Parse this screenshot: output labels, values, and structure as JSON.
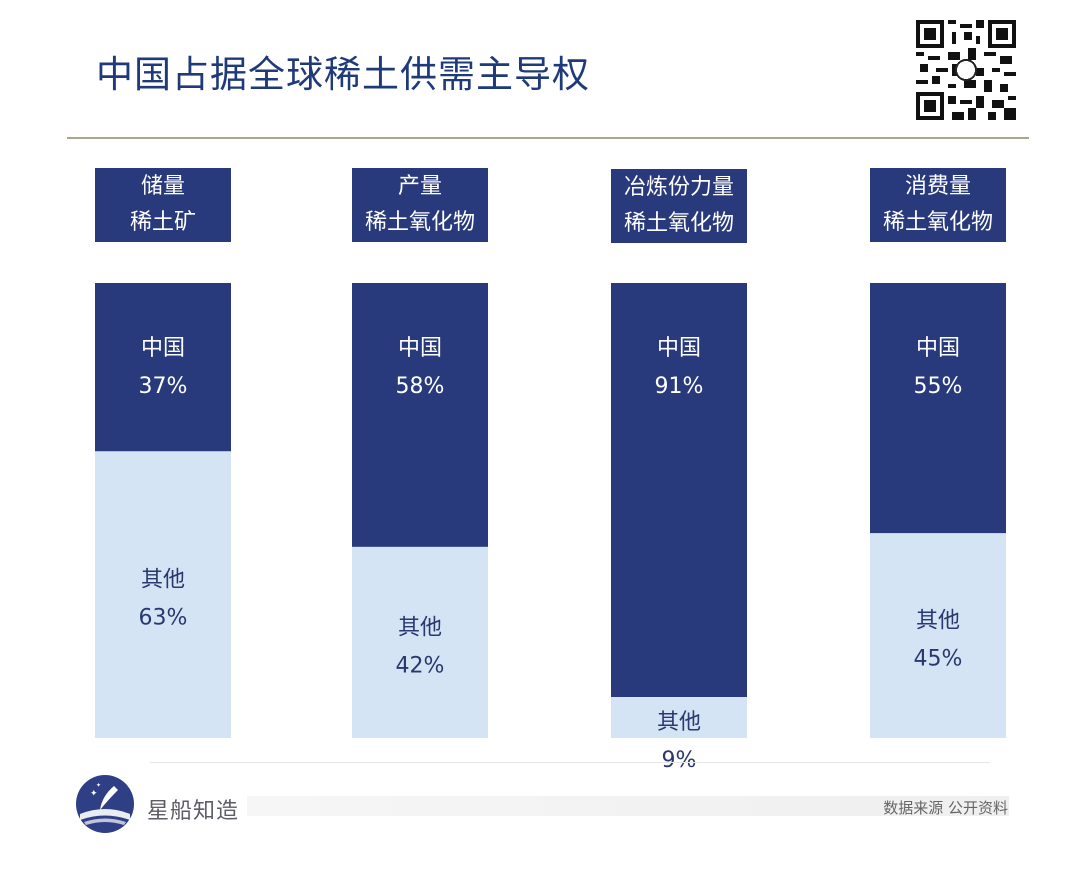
{
  "header": {
    "title": "中国占据全球稀土供需主导权"
  },
  "chart_data": {
    "type": "bar",
    "stacked": true,
    "orientation": "vertical-100-percent",
    "categories": [
      {
        "line1": "储量",
        "line2": "稀土矿"
      },
      {
        "line1": "产量",
        "line2": "稀土氧化物"
      },
      {
        "line1": "冶炼份力量",
        "line2": "稀土氧化物"
      },
      {
        "line1": "消费量",
        "line2": "稀土氧化物"
      }
    ],
    "series": [
      {
        "name": "中国",
        "values": [
          37,
          58,
          91,
          55
        ],
        "color": "#293a7c",
        "text_color": "#ffffff"
      },
      {
        "name": "其他",
        "values": [
          63,
          42,
          9,
          45
        ],
        "color": "#d5e4f4",
        "text_color": "#29386e"
      }
    ],
    "value_suffix": "%",
    "ylim": [
      0,
      100
    ]
  },
  "footer": {
    "brand": "星船知造",
    "source": "数据来源  公开资料"
  },
  "colors": {
    "title": "#1f3a7a",
    "rule": "#a9a58f"
  }
}
